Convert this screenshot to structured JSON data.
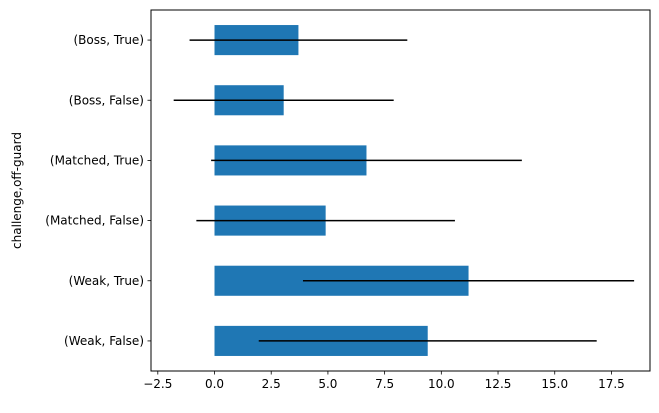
{
  "chart_data": {
    "type": "bar",
    "orientation": "horizontal",
    "categories": [
      "(Weak, False)",
      "(Weak, True)",
      "(Matched, False)",
      "(Matched, True)",
      "(Boss, False)",
      "(Boss, True)"
    ],
    "values": [
      9.4,
      11.2,
      4.9,
      6.7,
      3.05,
      3.7
    ],
    "error": [
      7.45,
      7.3,
      5.7,
      6.85,
      4.85,
      4.8
    ],
    "xlim": [
      -2.8,
      19.2
    ],
    "xticks": [
      -2.5,
      0.0,
      2.5,
      5.0,
      7.5,
      10.0,
      12.5,
      15.0,
      17.5
    ],
    "xtick_labels": [
      "−2.5",
      "0.0",
      "2.5",
      "5.0",
      "7.5",
      "10.0",
      "12.5",
      "15.0",
      "17.5"
    ],
    "ylabel": "challenge,off-guard",
    "xlabel": "",
    "title": "",
    "bar_color": "#1f77b4",
    "errorbar_color": "#000000",
    "grid": false
  }
}
